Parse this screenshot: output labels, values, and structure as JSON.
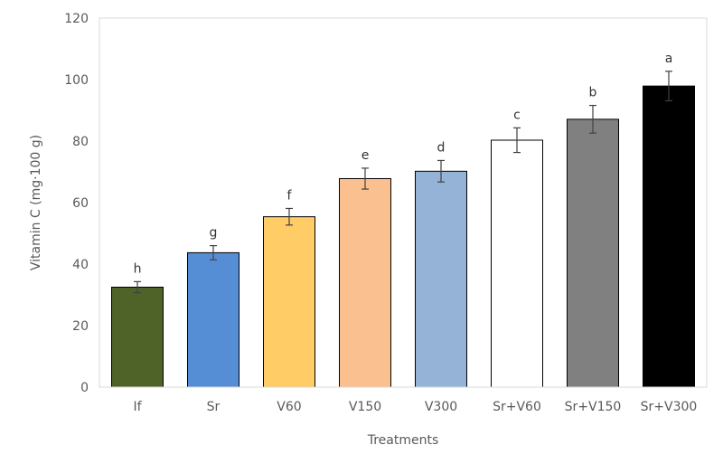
{
  "chart_data": {
    "type": "bar",
    "title": "",
    "xlabel": "Treatments",
    "ylabel": "Vitamin C  (mg·100 g)",
    "ylim": [
      0,
      120
    ],
    "yticks": [
      0,
      20,
      40,
      60,
      80,
      100,
      120
    ],
    "grid": false,
    "legend": "none",
    "categories": [
      "If",
      "Sr",
      "V60",
      "V150",
      "V300",
      "Sr+V60",
      "Sr+V150",
      "Sr+V300"
    ],
    "values": [
      32.5,
      43.7,
      55.4,
      67.8,
      70.2,
      80.3,
      87.1,
      97.9
    ],
    "errors": [
      1.8,
      2.3,
      2.7,
      3.4,
      3.5,
      4.0,
      4.5,
      4.8
    ],
    "significance_labels": [
      "h",
      "g",
      "f",
      "e",
      "d",
      "c",
      "b",
      "a"
    ],
    "colors": [
      "#4f6228",
      "#558ed5",
      "#ffcc66",
      "#fac090",
      "#95b3d7",
      "#ffffff",
      "#808080",
      "#000000"
    ]
  }
}
